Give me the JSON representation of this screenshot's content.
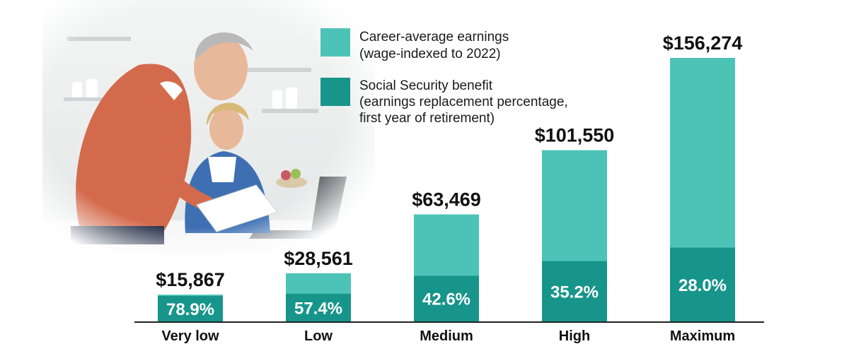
{
  "colors": {
    "earnings": "#4dc3b8",
    "benefit": "#17958a",
    "axis": "#222222",
    "photo_wall": "#eef0f0",
    "sweater_man": "#d46a4c",
    "sweater_woman": "#3f6fb3",
    "skin": "#e8b89a",
    "hair_man": "#b9b9b9",
    "hair_woman": "#d9b878"
  },
  "legend": [
    {
      "series": "earnings",
      "lines": [
        "Career-average earnings",
        "(wage-indexed to 2022)"
      ]
    },
    {
      "series": "benefit",
      "lines": [
        "Social Security benefit",
        "(earnings replacement percentage,",
        "first year of retirement)"
      ]
    }
  ],
  "chart_data": {
    "type": "bar",
    "stacked": "overlay",
    "categories": [
      "Very low",
      "Low",
      "Medium",
      "High",
      "Maximum"
    ],
    "series": [
      {
        "name": "Career-average earnings (wage-indexed to 2022)",
        "values": [
          15867,
          28561,
          63469,
          101550,
          156274
        ],
        "labels": [
          "$15,867",
          "$28,561",
          "$63,469",
          "$101,550",
          "$156,274"
        ]
      },
      {
        "name": "Social Security benefit (earnings replacement percentage, first year of retirement)",
        "replacement_pct": [
          78.9,
          57.4,
          42.6,
          35.2,
          28.0
        ],
        "labels": [
          "78.9%",
          "57.4%",
          "42.6%",
          "35.2%",
          "28.0%"
        ]
      }
    ],
    "ylim": [
      0,
      170000
    ],
    "grid": false,
    "legend_position": "top-center"
  },
  "photo": {
    "description_icon": "retired-couple-photo"
  }
}
